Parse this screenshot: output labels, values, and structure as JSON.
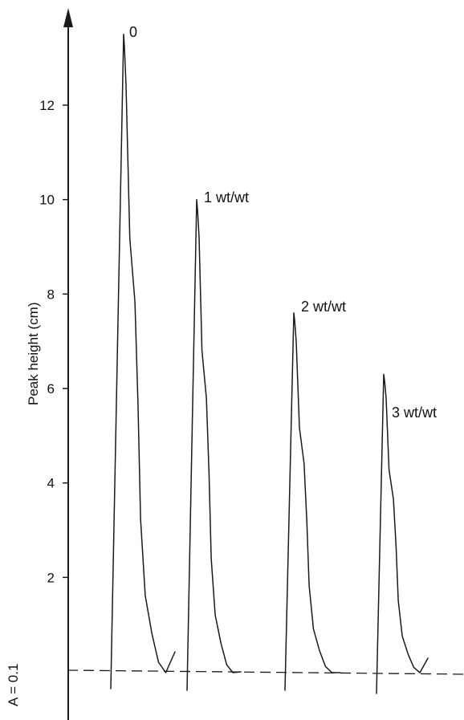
{
  "chart_data": {
    "type": "line",
    "title": "",
    "ylabel": "Peak height (cm)",
    "baseline_label": "A = 0.1",
    "yticks": [
      2,
      4,
      6,
      8,
      10,
      12
    ],
    "ylim": [
      0,
      14
    ],
    "grid": false,
    "series": [
      {
        "name": "0",
        "peak_height": 13.5
      },
      {
        "name": "1 wt/wt",
        "peak_height": 10.0
      },
      {
        "name": "2 wt/wt",
        "peak_height": 7.6
      },
      {
        "name": "3 wt/wt",
        "peak_height": 6.3
      }
    ],
    "baseline": {
      "style": "dashed",
      "y": 0
    },
    "colors": {
      "ink": "#1a1a1a",
      "background": "#ffffff"
    }
  }
}
